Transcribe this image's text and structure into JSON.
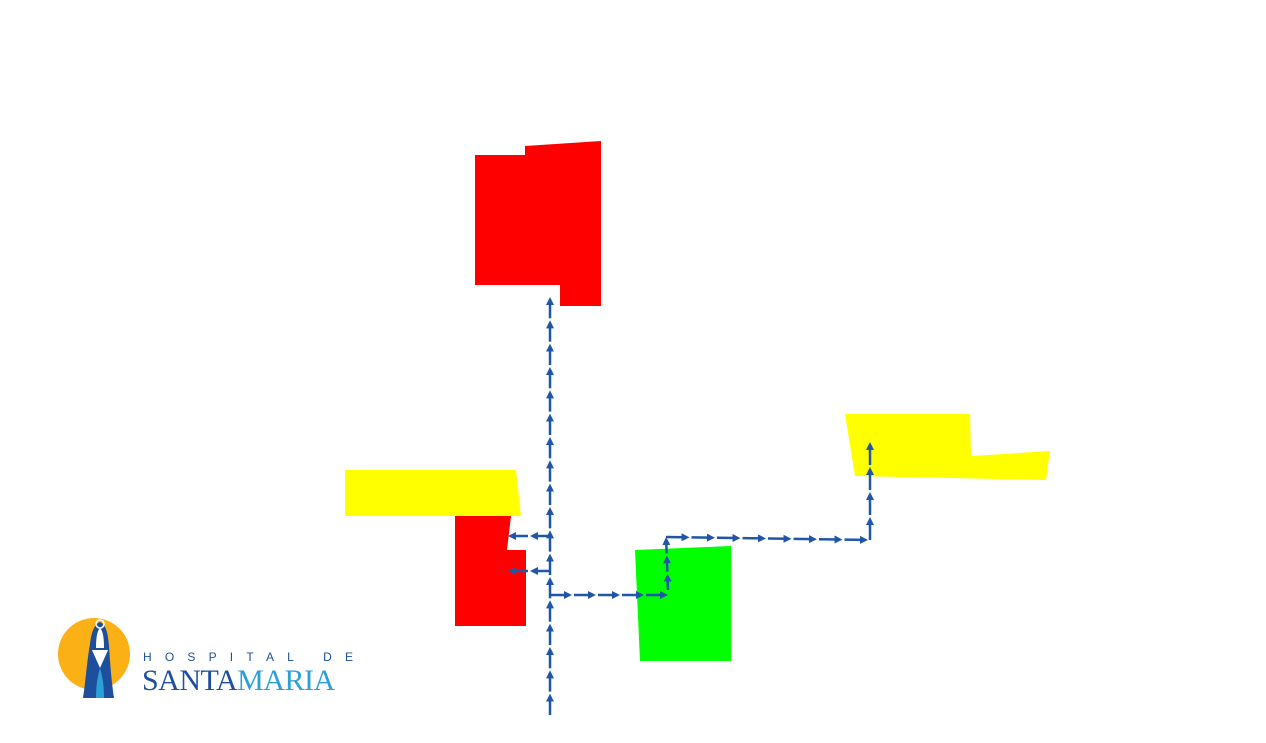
{
  "colors": {
    "red_zone": "#ff0000",
    "yellow_zone": "#ffff00",
    "green_zone": "#00ff00",
    "route": "#1f56a8",
    "logo_orange": "#fbb116",
    "logo_blue": "#1d4f9c",
    "logo_light_blue": "#2aa0d8"
  },
  "logo": {
    "line1": "HOSPITAL DE",
    "line2_part1": "SANTA",
    "line2_part2": "MARIA"
  }
}
